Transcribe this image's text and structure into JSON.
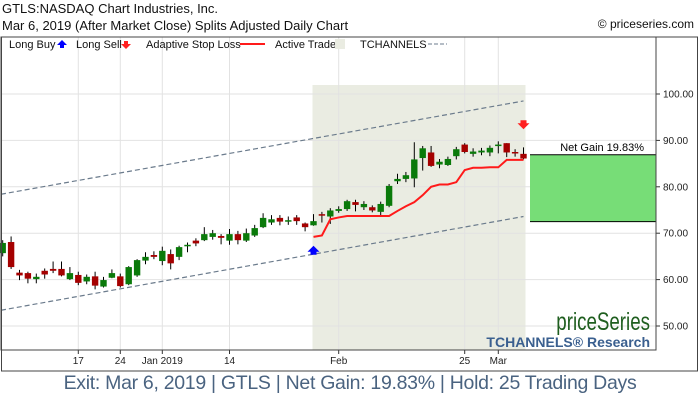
{
  "header": {
    "title": "GTLS:NASDAQ Chart Industries, Inc.",
    "subtitle": "Mar 6, 2019 (After Market Close)  Splits Adjusted Daily Chart",
    "copyright": "© priceseries.com"
  },
  "legend": {
    "long_buy": "Long Buy",
    "long_sell": "Long Sell",
    "adaptive_stop": "Adaptive Stop Loss",
    "active_trade": "Active Trade",
    "tchannels": "TCHANNELS"
  },
  "watermark": {
    "brand": "priceSeries",
    "research": "TCHANNELS® Research"
  },
  "net_gain_label": "Net Gain 19.83%",
  "footer": "Exit: Mar 6, 2019 | GTLS | Net Gain: 19.83% | Hold: 25 Trading Days",
  "colors": {
    "up": "#0a7a0a",
    "down": "#a50000",
    "stop": "#ff1a1a",
    "buy": "#0000ff",
    "sell": "#ff2020",
    "active": "#eaece2",
    "gain": "#77dd77",
    "channel": "#6b7b8c",
    "footer": "#4a6380"
  },
  "chart_data": {
    "type": "candlestick",
    "ylim": [
      45,
      105
    ],
    "y_ticks": [
      "50.00",
      "60.00",
      "70.00",
      "80.00",
      "90.00",
      "100.00"
    ],
    "y_tick_values": [
      50,
      60,
      70,
      80,
      90,
      100
    ],
    "x_ticks": [
      {
        "label": "17",
        "date": "Dec 17"
      },
      {
        "label": "24",
        "date": "Dec 24"
      },
      {
        "label": "Jan 2019",
        "date": "Jan 2"
      },
      {
        "label": "14",
        "date": "Jan 14"
      },
      {
        "label": "Feb",
        "date": "Feb 1"
      },
      {
        "label": "25",
        "date": "Feb 25"
      },
      {
        "label": "Mar",
        "date": "Mar 1"
      }
    ],
    "grid": true,
    "candles_fields": [
      "date",
      "open",
      "high",
      "low",
      "close"
    ],
    "candles": [
      [
        "Dec 3",
        65.7,
        68.5,
        65.0,
        67.9
      ],
      [
        "Dec 4",
        68.1,
        69.3,
        62.3,
        62.7
      ],
      [
        "Dec 6",
        61.5,
        62.1,
        59.9,
        60.9
      ],
      [
        "Dec 7",
        61.4,
        61.7,
        59.2,
        60.2
      ],
      [
        "Dec 10",
        60.1,
        61.3,
        59.2,
        60.6
      ],
      [
        "Dec 11",
        61.9,
        62.4,
        60.2,
        61.1
      ],
      [
        "Dec 12",
        62.3,
        63.9,
        61.4,
        61.9
      ],
      [
        "Dec 13",
        62.3,
        63.9,
        60.7,
        60.9
      ],
      [
        "Dec 14",
        60.1,
        62.7,
        59.9,
        61.4
      ],
      [
        "Dec 17",
        61.0,
        61.7,
        58.8,
        59.3
      ],
      [
        "Dec 18",
        59.6,
        61.1,
        59.0,
        60.6
      ],
      [
        "Dec 19",
        60.7,
        61.7,
        57.9,
        58.7
      ],
      [
        "Dec 20",
        58.5,
        60.6,
        58.3,
        59.9
      ],
      [
        "Dec 21",
        60.4,
        62.2,
        60.3,
        61.4
      ],
      [
        "Dec 24",
        60.7,
        61.3,
        58.3,
        58.6
      ],
      [
        "Dec 26",
        59.0,
        62.9,
        58.8,
        62.7
      ],
      [
        "Dec 27",
        60.9,
        64.4,
        60.6,
        64.2
      ],
      [
        "Dec 28",
        64.1,
        65.9,
        63.3,
        64.9
      ],
      [
        "Dec 31",
        65.3,
        66.1,
        64.4,
        64.9
      ],
      [
        "Jan 2",
        64.0,
        67.1,
        63.1,
        66.2
      ],
      [
        "Jan 3",
        65.5,
        66.5,
        62.2,
        63.5
      ],
      [
        "Jan 4",
        64.9,
        67.3,
        64.2,
        67.0
      ],
      [
        "Jan 7",
        67.2,
        68.0,
        65.9,
        67.5
      ],
      [
        "Jan 8",
        68.4,
        68.9,
        67.2,
        67.8
      ],
      [
        "Jan 9",
        68.5,
        71.3,
        68.3,
        69.8
      ],
      [
        "Jan 10",
        69.2,
        70.7,
        68.6,
        70.0
      ],
      [
        "Jan 11",
        69.4,
        69.8,
        67.6,
        69.0
      ],
      [
        "Jan 14",
        68.4,
        70.9,
        67.5,
        69.8
      ],
      [
        "Jan 15",
        69.8,
        70.5,
        67.6,
        68.5
      ],
      [
        "Jan 16",
        68.4,
        71.0,
        68.1,
        70.0
      ],
      [
        "Jan 17",
        69.5,
        71.8,
        69.2,
        71.1
      ],
      [
        "Jan 18",
        71.3,
        74.3,
        71.1,
        73.3
      ],
      [
        "Jan 22",
        72.3,
        73.9,
        71.8,
        73.0
      ],
      [
        "Jan 23",
        73.3,
        73.9,
        71.7,
        72.5
      ],
      [
        "Jan 24",
        72.5,
        73.6,
        71.8,
        72.8
      ],
      [
        "Jan 25",
        73.4,
        73.9,
        71.8,
        72.6
      ],
      [
        "Jan 28",
        72.1,
        72.3,
        70.4,
        71.3
      ],
      [
        "Jan 29",
        71.7,
        74.1,
        71.6,
        72.6
      ],
      [
        "Jan 30",
        74.1,
        74.6,
        72.3,
        73.8
      ],
      [
        "Jan 31",
        73.6,
        75.4,
        72.0,
        74.9
      ],
      [
        "Feb 1",
        74.8,
        75.8,
        74.4,
        75.2
      ],
      [
        "Feb 4",
        75.2,
        77.2,
        74.8,
        76.9
      ],
      [
        "Feb 5",
        76.7,
        77.2,
        74.7,
        76.1
      ],
      [
        "Feb 6",
        75.6,
        76.9,
        75.0,
        76.3
      ],
      [
        "Feb 7",
        75.6,
        76.0,
        74.5,
        74.9
      ],
      [
        "Feb 8",
        74.6,
        76.8,
        73.9,
        76.3
      ],
      [
        "Feb 11",
        75.9,
        80.6,
        75.6,
        80.2
      ],
      [
        "Feb 12",
        81.2,
        82.8,
        80.6,
        81.7
      ],
      [
        "Feb 13",
        81.7,
        83.2,
        81.0,
        82.5
      ],
      [
        "Feb 14",
        81.8,
        89.6,
        79.9,
        85.9
      ],
      [
        "Feb 15",
        86.2,
        88.8,
        83.5,
        88.3
      ],
      [
        "Feb 19",
        87.4,
        88.8,
        84.3,
        84.5
      ],
      [
        "Feb 20",
        84.8,
        86.0,
        84.0,
        85.4
      ],
      [
        "Feb 21",
        84.7,
        86.5,
        84.5,
        86.0
      ],
      [
        "Feb 22",
        86.6,
        88.6,
        85.9,
        88.1
      ],
      [
        "Feb 25",
        89.1,
        89.4,
        87.2,
        87.5
      ],
      [
        "Feb 26",
        87.1,
        88.3,
        86.5,
        87.6
      ],
      [
        "Feb 27",
        87.4,
        88.4,
        86.8,
        87.8
      ],
      [
        "Feb 28",
        87.4,
        88.9,
        86.6,
        88.4
      ],
      [
        "Mar 1",
        88.9,
        89.8,
        87.2,
        89.1
      ],
      [
        "Mar 4",
        89.4,
        89.4,
        86.4,
        87.4
      ],
      [
        "Mar 5",
        87.5,
        88.1,
        86.5,
        87.2
      ],
      [
        "Mar 6",
        87.1,
        88.5,
        85.9,
        86.1
      ]
    ],
    "adaptive_stop_loss": {
      "dates": [
        "Jan 29",
        "Jan 30",
        "Jan 31",
        "Feb 1",
        "Feb 4",
        "Feb 5",
        "Feb 6",
        "Feb 7",
        "Feb 8",
        "Feb 11",
        "Feb 12",
        "Feb 13",
        "Feb 14",
        "Feb 15",
        "Feb 19",
        "Feb 20",
        "Feb 21",
        "Feb 22",
        "Feb 25",
        "Feb 26",
        "Feb 27",
        "Feb 28",
        "Mar 1",
        "Mar 4",
        "Mar 5",
        "Mar 6"
      ],
      "values": [
        69.2,
        69.5,
        73.0,
        73.4,
        73.7,
        73.7,
        73.7,
        73.7,
        73.7,
        73.7,
        74.8,
        75.8,
        76.7,
        78.2,
        80.0,
        80.5,
        80.5,
        81.0,
        83.6,
        84.1,
        84.1,
        84.2,
        84.2,
        85.8,
        85.8,
        85.8
      ]
    },
    "active_trade": {
      "start": "Jan 29",
      "end": "Mar 6"
    },
    "long_buy": {
      "date": "Jan 29",
      "price": 66.0
    },
    "long_sell": {
      "date": "Mar 6",
      "price": 93.7
    },
    "tchannels": {
      "upper": {
        "start": [
          "Dec 3",
          78.5
        ],
        "end": [
          "Mar 6",
          98.5
        ]
      },
      "lower": {
        "start": [
          "Dec 3",
          53.5
        ],
        "end": [
          "Mar 6",
          73.6
        ]
      }
    },
    "net_gain": {
      "entry": 72.5,
      "exit": 86.9,
      "percent": 19.83
    }
  }
}
